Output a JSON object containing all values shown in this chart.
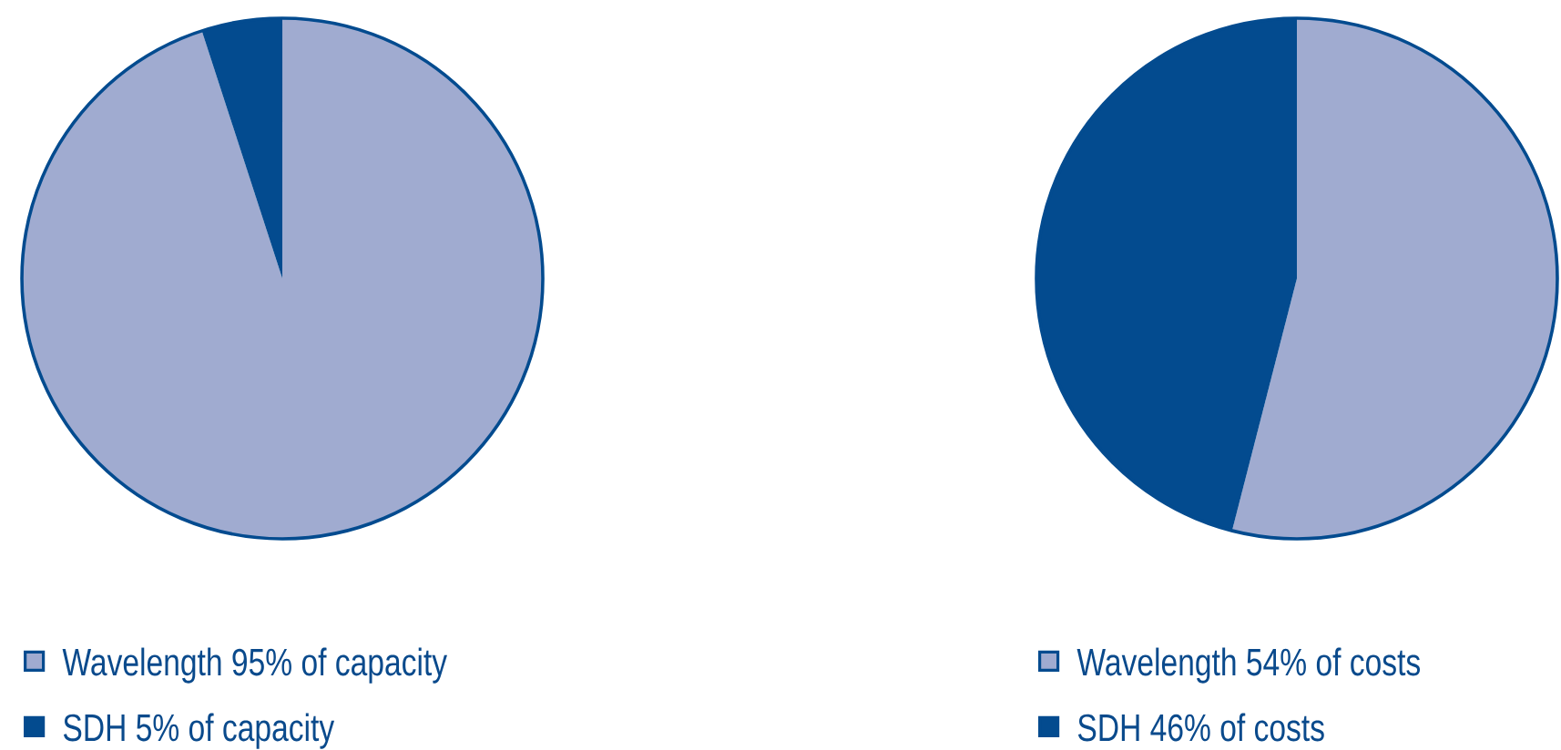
{
  "chart_data": [
    {
      "type": "pie",
      "categories": [
        "Wavelength 95% of capacity",
        "SDH 5% of capacity"
      ],
      "values": [
        95,
        5
      ],
      "colors": [
        "#a0abd0",
        "#034b8f"
      ],
      "legend": "bottom left"
    },
    {
      "type": "pie",
      "categories": [
        "Wavelength 54% of costs",
        "SDH 46% of costs"
      ],
      "values": [
        54,
        46
      ],
      "colors": [
        "#a0abd0",
        "#034b8f"
      ],
      "legend": "bottom left"
    }
  ]
}
